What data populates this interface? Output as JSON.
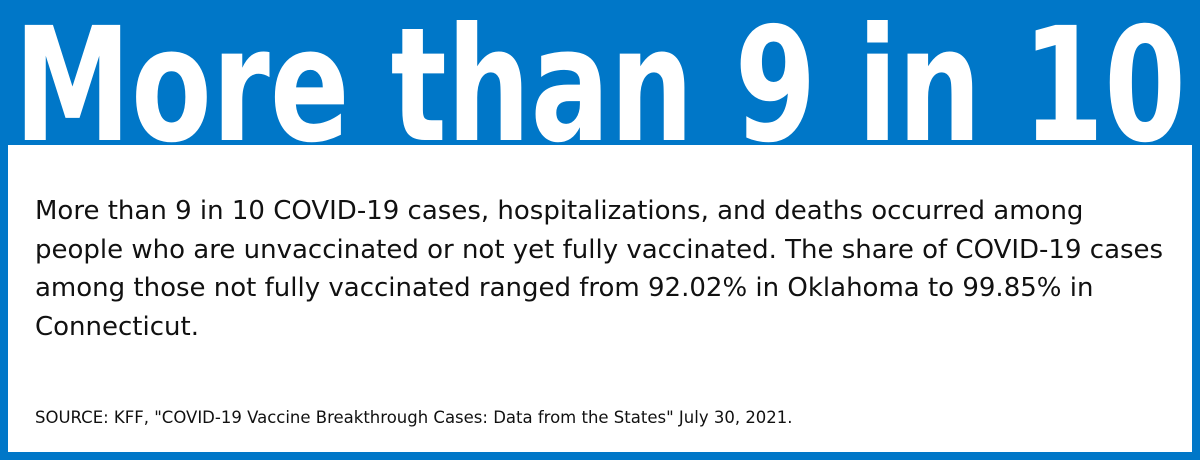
{
  "header": {
    "title": "More than 9 in 10"
  },
  "body": {
    "text": "More than 9 in 10 COVID-19 cases, hospitalizations, and deaths occurred among people who are unvaccinated or not yet fully vaccinated. The share of COVID-19 cases among those not fully vaccinated ranged from 92.02% in Oklahoma to 99.85% in Connecticut."
  },
  "footer": {
    "source": "SOURCE: KFF, \"COVID-19 Vaccine Breakthrough Cases: Data from the States\" July 30, 2021."
  }
}
